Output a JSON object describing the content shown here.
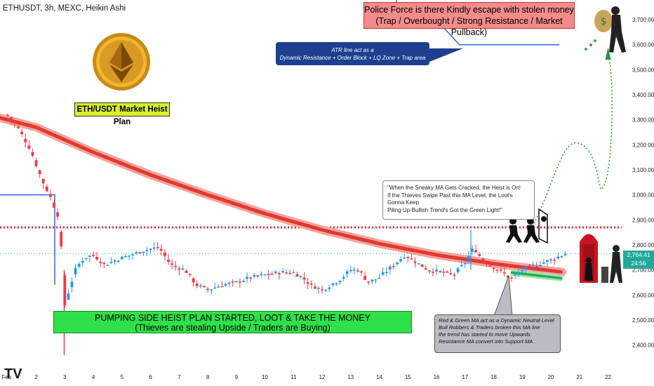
{
  "header": {
    "title": "ETHUSDT, 3h, MEXC, Heikin Ashi"
  },
  "annotations": {
    "police_line1": "Police Force is there Kindly escape with stolen money",
    "police_line2": "(Trap / Overbought / Strong Resistance / Market Pullback)",
    "atr_line1": "ATR line act as a",
    "atr_line2": "Dynamic Resistance + Order Block + LQ Zone + Trap area",
    "plan_label": "ETH/USDT Market Heist Plan",
    "quote_line1": "\"When the Sneaky MA Gets Cracked, the Heist is On!",
    "quote_line2": "If the Thieves Swipe Past this MA Level, the Loot's Gonna Keep",
    "quote_line3": "Piling Up-Bullish Trend's Got the Green Light!\"",
    "pump_line1": "PUMPING SIDE HEIST PLAN STARTED, LOOT & TAKE THE MONEY",
    "pump_line2": "(Thieves are stealing Upside / Traders are Buying)",
    "note_line1": "Red & Green MA act as a Dynamic Neutral Level",
    "note_line2": "Bull Robbers & Traders broken this MA line",
    "note_line3": "the trend has started to move Upwards",
    "note_line4": "Resistance MA convert into Support MA"
  },
  "price_tag": {
    "price": "2,764.41",
    "countdown": "24:56"
  },
  "branding": {
    "logo": "TV",
    "dollar_sign": "$"
  },
  "colors": {
    "bull": "#2196f3",
    "bear": "#f23645",
    "red_ma": "#e03a2f",
    "green_ma": "#22b14c",
    "atr": "#2962ff",
    "dotted_level": "#e8262c",
    "target_path": "#1a9a3a",
    "price_line": "#22a89a"
  },
  "chart_data": {
    "type": "candlestick",
    "title": "ETHUSDT, 3h, MEXC, Heikin Ashi",
    "y_ticks": [
      3700,
      3600,
      3500,
      3400,
      3300,
      3200,
      3100,
      3000,
      2900,
      2800,
      2700,
      2600,
      2500,
      2400
    ],
    "ylim": [
      2340,
      3790
    ],
    "x_ticks": [
      {
        "label": "Feb",
        "day": 0.96
      },
      {
        "label": "2",
        "day": 2
      },
      {
        "label": "3",
        "day": 3
      },
      {
        "label": "4",
        "day": 4
      },
      {
        "label": "5",
        "day": 5
      },
      {
        "label": "6",
        "day": 6
      },
      {
        "label": "7",
        "day": 7
      },
      {
        "label": "8",
        "day": 8
      },
      {
        "label": "9",
        "day": 9
      },
      {
        "label": "10",
        "day": 10
      },
      {
        "label": "11",
        "day": 11
      },
      {
        "label": "12",
        "day": 12
      },
      {
        "label": "13",
        "day": 13
      },
      {
        "label": "14",
        "day": 14
      },
      {
        "label": "15",
        "day": 15
      },
      {
        "label": "16",
        "day": 16
      },
      {
        "label": "17",
        "day": 17
      },
      {
        "label": "18",
        "day": 18
      },
      {
        "label": "19",
        "day": 19
      },
      {
        "label": "20",
        "day": 20
      },
      {
        "label": "21",
        "day": 21
      },
      {
        "label": "22",
        "day": 22
      }
    ],
    "current_price": 2764.41,
    "key_level": 2870,
    "target": 3600,
    "close_anchors": [
      [
        1.0,
        3320
      ],
      [
        1.4,
        3260
      ],
      [
        1.8,
        3180
      ],
      [
        2.2,
        3060
      ],
      [
        2.5,
        2990
      ],
      [
        2.75,
        2920
      ],
      [
        2.9,
        2760
      ],
      [
        3.0,
        2560
      ],
      [
        3.15,
        2620
      ],
      [
        3.4,
        2710
      ],
      [
        3.7,
        2750
      ],
      [
        4.0,
        2760
      ],
      [
        4.4,
        2720
      ],
      [
        4.8,
        2740
      ],
      [
        5.3,
        2760
      ],
      [
        5.8,
        2780
      ],
      [
        6.3,
        2790
      ],
      [
        6.7,
        2720
      ],
      [
        7.2,
        2700
      ],
      [
        7.6,
        2640
      ],
      [
        8.0,
        2620
      ],
      [
        8.5,
        2640
      ],
      [
        9.0,
        2650
      ],
      [
        9.5,
        2670
      ],
      [
        10.0,
        2680
      ],
      [
        10.5,
        2690
      ],
      [
        11.0,
        2690
      ],
      [
        11.3,
        2670
      ],
      [
        11.6,
        2640
      ],
      [
        12.0,
        2620
      ],
      [
        12.3,
        2640
      ],
      [
        12.6,
        2660
      ],
      [
        13.0,
        2700
      ],
      [
        13.3,
        2700
      ],
      [
        13.6,
        2650
      ],
      [
        14.0,
        2670
      ],
      [
        14.5,
        2720
      ],
      [
        14.9,
        2760
      ],
      [
        15.3,
        2730
      ],
      [
        15.7,
        2700
      ],
      [
        16.2,
        2690
      ],
      [
        16.6,
        2680
      ],
      [
        17.0,
        2730
      ],
      [
        17.3,
        2790
      ],
      [
        17.6,
        2740
      ],
      [
        18.0,
        2710
      ],
      [
        18.3,
        2690
      ],
      [
        18.6,
        2665
      ],
      [
        19.0,
        2700
      ],
      [
        19.5,
        2720
      ],
      [
        20.0,
        2740
      ],
      [
        20.5,
        2764
      ]
    ],
    "red_ma": [
      [
        0.0,
        3330
      ],
      [
        2.0,
        3270
      ],
      [
        4.0,
        3170
      ],
      [
        6.0,
        3080
      ],
      [
        8.0,
        3000
      ],
      [
        10.0,
        2925
      ],
      [
        12.0,
        2860
      ],
      [
        14.0,
        2805
      ],
      [
        16.0,
        2760
      ],
      [
        18.0,
        2725
      ],
      [
        20.5,
        2690
      ]
    ],
    "green_ma": [
      [
        18.6,
        2690
      ],
      [
        20.5,
        2665
      ]
    ],
    "atr_steps": [
      [
        -0.5,
        3810
      ],
      [
        1.4,
        3810
      ],
      [
        1.4,
        3790
      ],
      [
        4.3,
        3790
      ],
      [
        4.3,
        3790
      ],
      [
        14.6,
        3790
      ],
      [
        14.6,
        3735
      ],
      [
        15.2,
        3735
      ],
      [
        15.2,
        3700
      ],
      [
        16.0,
        3700
      ],
      [
        16.8,
        3600
      ],
      [
        20.3,
        3600
      ]
    ],
    "support_step": [
      [
        -0.5,
        3000
      ],
      [
        2.65,
        3000
      ],
      [
        2.65,
        2640
      ]
    ]
  }
}
